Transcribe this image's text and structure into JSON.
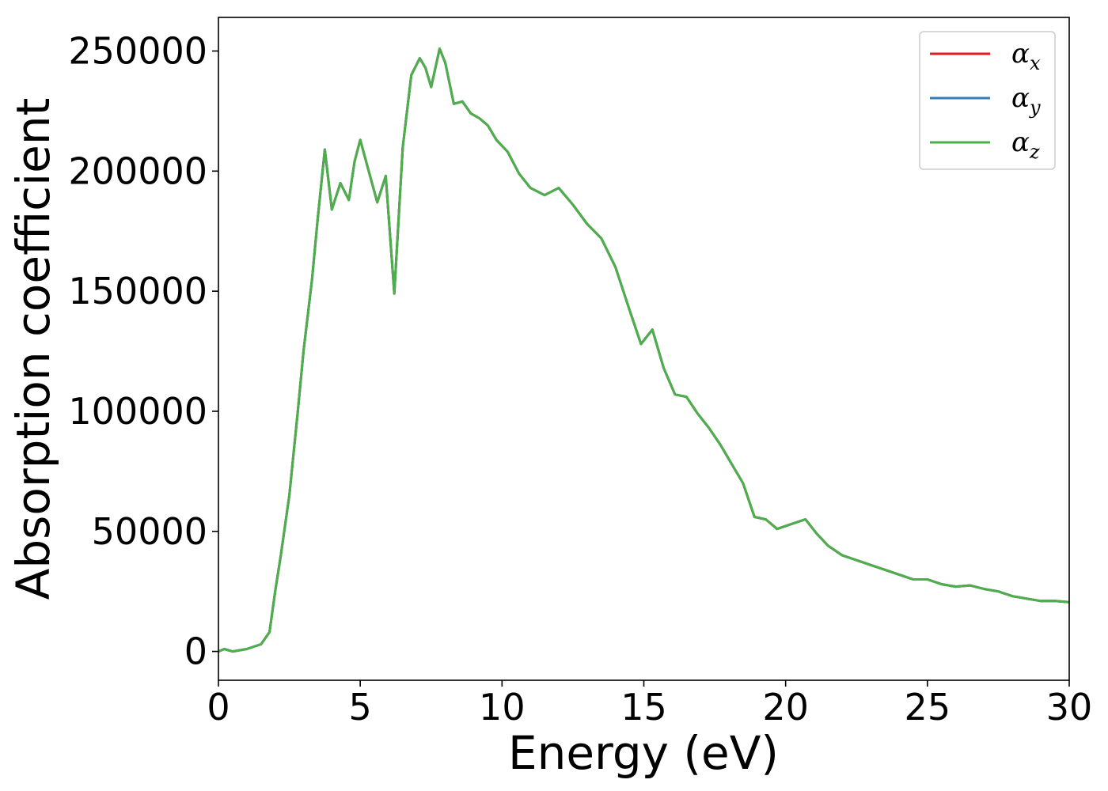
{
  "chart_data": {
    "type": "line",
    "title": "",
    "xlabel": "Energy (eV)",
    "ylabel": "Absorption coefficient",
    "xlim": [
      0,
      30
    ],
    "ylim": [
      -12000,
      264000
    ],
    "xticks": [
      0,
      5,
      10,
      15,
      20,
      25,
      30
    ],
    "yticks": [
      0,
      50000,
      100000,
      150000,
      200000,
      250000
    ],
    "grid": false,
    "legend_position": "top-right",
    "series": [
      {
        "name": "α",
        "subscript": "x",
        "color": "#e41a1c",
        "x": [
          0,
          0.2,
          0.5,
          1.0,
          1.5,
          1.8,
          2.0,
          2.2,
          2.5,
          2.8,
          3.0,
          3.3,
          3.5,
          3.75,
          4.0,
          4.3,
          4.6,
          4.8,
          5.0,
          5.3,
          5.6,
          5.9,
          6.2,
          6.5,
          6.8,
          7.1,
          7.3,
          7.5,
          7.8,
          8.0,
          8.3,
          8.6,
          8.9,
          9.2,
          9.5,
          9.8,
          10.2,
          10.6,
          11.0,
          11.5,
          12.0,
          12.5,
          13.0,
          13.5,
          14.0,
          14.5,
          14.9,
          15.3,
          15.7,
          16.1,
          16.5,
          16.9,
          17.3,
          17.7,
          18.1,
          18.5,
          18.9,
          19.3,
          19.7,
          20.2,
          20.7,
          21.1,
          21.5,
          22.0,
          22.5,
          23.0,
          23.5,
          24.0,
          24.5,
          25.0,
          25.5,
          26.0,
          26.5,
          27.0,
          27.5,
          28.0,
          28.5,
          29.0,
          29.5,
          30.0
        ],
        "y": [
          0,
          1000,
          0,
          1000,
          3000,
          8000,
          25000,
          40000,
          65000,
          100000,
          125000,
          155000,
          180000,
          209000,
          184000,
          195000,
          188000,
          204000,
          213000,
          200000,
          187000,
          198000,
          149000,
          210000,
          240000,
          247000,
          243000,
          235000,
          251000,
          245000,
          228000,
          229000,
          224000,
          222000,
          219000,
          213000,
          208000,
          199000,
          193000,
          190000,
          193000,
          186000,
          178000,
          172000,
          160000,
          142000,
          128000,
          134000,
          118000,
          107000,
          106000,
          99000,
          93000,
          86000,
          78000,
          70000,
          56000,
          55000,
          51000,
          53000,
          55000,
          49000,
          44000,
          40000,
          38000,
          36000,
          34000,
          32000,
          30000,
          30000,
          28000,
          27000,
          27500,
          26000,
          25000,
          23000,
          22000,
          21000,
          21000,
          20500
        ]
      },
      {
        "name": "α",
        "subscript": "y",
        "color": "#377eb8",
        "x": [
          0,
          0.2,
          0.5,
          1.0,
          1.5,
          1.8,
          2.0,
          2.2,
          2.5,
          2.8,
          3.0,
          3.3,
          3.5,
          3.75,
          4.0,
          4.3,
          4.6,
          4.8,
          5.0,
          5.3,
          5.6,
          5.9,
          6.2,
          6.5,
          6.8,
          7.1,
          7.3,
          7.5,
          7.8,
          8.0,
          8.3,
          8.6,
          8.9,
          9.2,
          9.5,
          9.8,
          10.2,
          10.6,
          11.0,
          11.5,
          12.0,
          12.5,
          13.0,
          13.5,
          14.0,
          14.5,
          14.9,
          15.3,
          15.7,
          16.1,
          16.5,
          16.9,
          17.3,
          17.7,
          18.1,
          18.5,
          18.9,
          19.3,
          19.7,
          20.2,
          20.7,
          21.1,
          21.5,
          22.0,
          22.5,
          23.0,
          23.5,
          24.0,
          24.5,
          25.0,
          25.5,
          26.0,
          26.5,
          27.0,
          27.5,
          28.0,
          28.5,
          29.0,
          29.5,
          30.0
        ],
        "y": [
          0,
          1000,
          0,
          1000,
          3000,
          8000,
          25000,
          40000,
          65000,
          100000,
          125000,
          155000,
          180000,
          209000,
          184000,
          195000,
          188000,
          204000,
          213000,
          200000,
          187000,
          198000,
          149000,
          210000,
          240000,
          247000,
          243000,
          235000,
          251000,
          245000,
          228000,
          229000,
          224000,
          222000,
          219000,
          213000,
          208000,
          199000,
          193000,
          190000,
          193000,
          186000,
          178000,
          172000,
          160000,
          142000,
          128000,
          134000,
          118000,
          107000,
          106000,
          99000,
          93000,
          86000,
          78000,
          70000,
          56000,
          55000,
          51000,
          53000,
          55000,
          49000,
          44000,
          40000,
          38000,
          36000,
          34000,
          32000,
          30000,
          30000,
          28000,
          27000,
          27500,
          26000,
          25000,
          23000,
          22000,
          21000,
          21000,
          20500
        ]
      },
      {
        "name": "α",
        "subscript": "z",
        "color": "#4daf4a",
        "x": [
          0,
          0.2,
          0.5,
          1.0,
          1.5,
          1.8,
          2.0,
          2.2,
          2.5,
          2.8,
          3.0,
          3.3,
          3.5,
          3.75,
          4.0,
          4.3,
          4.6,
          4.8,
          5.0,
          5.3,
          5.6,
          5.9,
          6.2,
          6.5,
          6.8,
          7.1,
          7.3,
          7.5,
          7.8,
          8.0,
          8.3,
          8.6,
          8.9,
          9.2,
          9.5,
          9.8,
          10.2,
          10.6,
          11.0,
          11.5,
          12.0,
          12.5,
          13.0,
          13.5,
          14.0,
          14.5,
          14.9,
          15.3,
          15.7,
          16.1,
          16.5,
          16.9,
          17.3,
          17.7,
          18.1,
          18.5,
          18.9,
          19.3,
          19.7,
          20.2,
          20.7,
          21.1,
          21.5,
          22.0,
          22.5,
          23.0,
          23.5,
          24.0,
          24.5,
          25.0,
          25.5,
          26.0,
          26.5,
          27.0,
          27.5,
          28.0,
          28.5,
          29.0,
          29.5,
          30.0
        ],
        "y": [
          0,
          1000,
          0,
          1000,
          3000,
          8000,
          25000,
          40000,
          65000,
          100000,
          125000,
          155000,
          180000,
          209000,
          184000,
          195000,
          188000,
          204000,
          213000,
          200000,
          187000,
          198000,
          149000,
          210000,
          240000,
          247000,
          243000,
          235000,
          251000,
          245000,
          228000,
          229000,
          224000,
          222000,
          219000,
          213000,
          208000,
          199000,
          193000,
          190000,
          193000,
          186000,
          178000,
          172000,
          160000,
          142000,
          128000,
          134000,
          118000,
          107000,
          106000,
          99000,
          93000,
          86000,
          78000,
          70000,
          56000,
          55000,
          51000,
          53000,
          55000,
          49000,
          44000,
          40000,
          38000,
          36000,
          34000,
          32000,
          30000,
          30000,
          28000,
          27000,
          27500,
          26000,
          25000,
          23000,
          22000,
          21000,
          21000,
          20500
        ]
      }
    ]
  }
}
